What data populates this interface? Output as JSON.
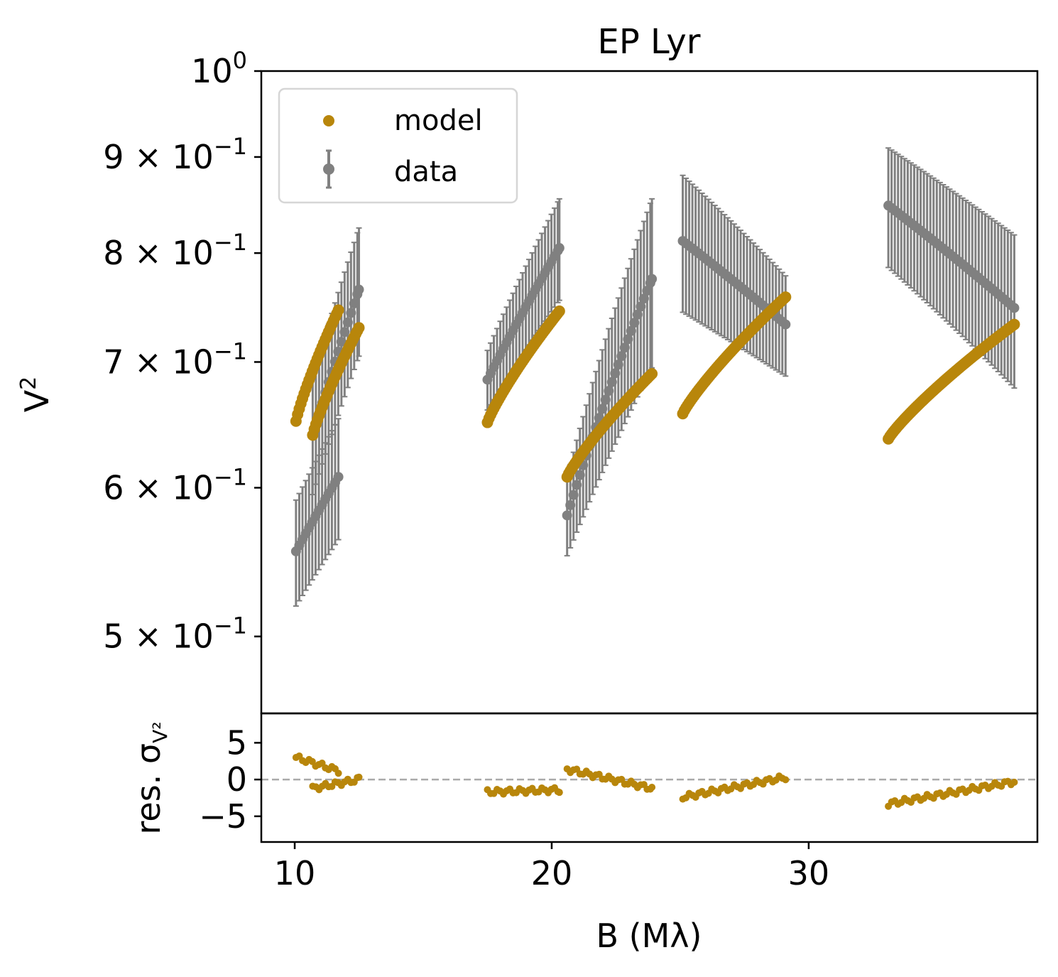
{
  "chart_data": {
    "type": "scatter",
    "title": "EP Lyr",
    "xlabel": "B (Mλ)",
    "ylabel": "V",
    "ylabel_sup": "2",
    "yscale": "log",
    "xlim": [
      8.7,
      38.9
    ],
    "ylim": [
      0.455,
      1.0
    ],
    "top_ticks": [
      {
        "value": 1.0,
        "base": "10",
        "exp": "0"
      },
      {
        "value": 0.9,
        "base": "9 × 10",
        "exp": "−1"
      },
      {
        "value": 0.8,
        "base": "8 × 10",
        "exp": "−1"
      },
      {
        "value": 0.7,
        "base": "7 × 10",
        "exp": "−1"
      },
      {
        "value": 0.6,
        "base": "6 × 10",
        "exp": "−1"
      },
      {
        "value": 0.5,
        "base": "5 × 10",
        "exp": "−1"
      }
    ],
    "x_ticks": [
      {
        "value": 10,
        "label": "10"
      },
      {
        "value": 20,
        "label": "20"
      },
      {
        "value": 30,
        "label": "30"
      }
    ],
    "residual": {
      "ylabel": "res. σ",
      "ylabel_sub": "V²",
      "ylim": [
        -8.5,
        9
      ],
      "ticks": [
        {
          "value": 5,
          "label": "5"
        },
        {
          "value": 0,
          "label": "0"
        },
        {
          "value": -5,
          "label": "−5"
        }
      ],
      "reference_line": 0
    },
    "legend": {
      "position": "top-left",
      "entries": [
        "model",
        "data"
      ]
    },
    "colors": {
      "model": "#b8860b",
      "data": "#808080",
      "reference": "#aaaaaa"
    },
    "segments": [
      {
        "x0": 10.05,
        "x1": 11.7,
        "model": [
          0.651,
          0.746
        ],
        "data": [
          0.555,
          0.608
        ],
        "err": [
          0.036,
          0.045
        ],
        "res": [
          3.0,
          1.2
        ]
      },
      {
        "x0": 10.7,
        "x1": 12.5,
        "model": [
          0.64,
          0.73
        ],
        "data": [
          0.64,
          0.765
        ],
        "err": [
          0.045,
          0.06
        ],
        "res": [
          -1.2,
          0.0
        ]
      },
      {
        "x0": 17.5,
        "x1": 20.3,
        "model": [
          0.65,
          0.745
        ],
        "data": [
          0.685,
          0.805
        ],
        "err": [
          0.025,
          0.05
        ],
        "res": [
          -1.7,
          -1.4
        ]
      },
      {
        "x0": 20.6,
        "x1": 23.9,
        "model": [
          0.608,
          0.69
        ],
        "data": [
          0.58,
          0.775
        ],
        "err": [
          0.028,
          0.08
        ],
        "res": [
          1.4,
          -1.2
        ]
      },
      {
        "x0": 25.1,
        "x1": 29.1,
        "model": [
          0.657,
          0.758
        ],
        "data": [
          0.812,
          0.733
        ],
        "err": [
          0.068,
          0.045
        ],
        "res": [
          -2.4,
          0.3
        ]
      },
      {
        "x0": 33.1,
        "x1": 38.0,
        "model": [
          0.637,
          0.733
        ],
        "data": [
          0.848,
          0.748
        ],
        "err": [
          0.062,
          0.07
        ],
        "res": [
          -3.3,
          -0.3
        ]
      }
    ]
  }
}
